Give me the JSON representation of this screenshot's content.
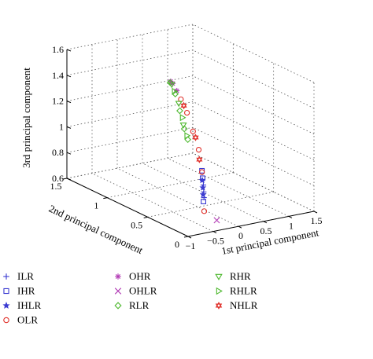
{
  "chart_data": {
    "type": "scatter",
    "projection": "3d",
    "title": "",
    "xlabel": "1st principal component",
    "ylabel": "2nd principal component",
    "zlabel": "3rd principal component",
    "xlim": [
      -1,
      1.5
    ],
    "ylim": [
      0,
      1.5
    ],
    "zlim": [
      0.6,
      1.6
    ],
    "xticks": [
      "−1",
      "−0.5",
      "0",
      "0.5",
      "1",
      "1.5"
    ],
    "yticks": [
      "0",
      "0.5",
      "1",
      "1.5"
    ],
    "zticks": [
      "0.6",
      "0.8",
      "1",
      "1.2",
      "1.4",
      "1.6"
    ],
    "grid": true,
    "legend_position": "bottom",
    "series": [
      {
        "name": "ILR",
        "marker": "plus",
        "color": "#3b3bd1",
        "points": [
          [
            -0.62,
            0.04,
            0.86
          ],
          [
            -0.61,
            0.05,
            0.9
          ],
          [
            -0.6,
            0.06,
            0.95
          ]
        ]
      },
      {
        "name": "IHR",
        "marker": "square",
        "color": "#3b3bd1",
        "points": [
          [
            -0.63,
            0.04,
            0.83
          ],
          [
            -0.6,
            0.07,
            1.0
          ],
          [
            -0.58,
            0.09,
            1.05
          ]
        ]
      },
      {
        "name": "IHLR",
        "marker": "star",
        "color": "#3b3bd1",
        "points": [
          [
            -0.62,
            0.05,
            0.88
          ],
          [
            -0.61,
            0.06,
            0.93
          ],
          [
            -0.59,
            0.08,
            0.98
          ]
        ]
      },
      {
        "name": "OLR",
        "marker": "circle",
        "color": "#e0302a",
        "points": [
          [
            -0.6,
            0.05,
            0.75
          ],
          [
            -0.58,
            0.09,
            1.04
          ],
          [
            -0.5,
            0.18,
            1.18
          ],
          [
            -0.42,
            0.3,
            1.28
          ],
          [
            -0.3,
            0.45,
            1.37
          ],
          [
            -0.18,
            0.6,
            1.42
          ]
        ]
      },
      {
        "name": "OHR",
        "marker": "asterisk",
        "color": "#b23cb5",
        "points": [
          [
            -0.1,
            0.7,
            1.45
          ],
          [
            -0.02,
            0.8,
            1.47
          ],
          [
            0.05,
            0.87,
            1.46
          ]
        ]
      },
      {
        "name": "OHLR",
        "marker": "x",
        "color": "#b23cb5",
        "points": [
          [
            -0.35,
            0.05,
            0.66
          ]
        ]
      },
      {
        "name": "RLR",
        "marker": "diamond",
        "color": "#4db82e",
        "points": [
          [
            0.12,
            0.92,
            1.43
          ],
          [
            0.35,
            1.0,
            1.3
          ],
          [
            0.6,
            1.1,
            1.12
          ],
          [
            0.85,
            1.2,
            0.93
          ],
          [
            1.0,
            1.25,
            0.82
          ]
        ]
      },
      {
        "name": "RHR",
        "marker": "triangle-down",
        "color": "#4db82e",
        "points": [
          [
            0.2,
            0.95,
            1.4
          ],
          [
            0.5,
            1.05,
            1.2
          ],
          [
            0.8,
            1.18,
            0.97
          ]
        ]
      },
      {
        "name": "RHLR",
        "marker": "triangle-right",
        "color": "#4db82e",
        "points": [
          [
            0.3,
            0.98,
            1.33
          ],
          [
            0.7,
            1.13,
            1.05
          ],
          [
            0.95,
            1.23,
            0.86
          ]
        ]
      },
      {
        "name": "NHLR",
        "marker": "hexagram",
        "color": "#e0302a",
        "points": [
          [
            -0.55,
            0.14,
            1.12
          ],
          [
            -0.45,
            0.25,
            1.25
          ],
          [
            -0.25,
            0.52,
            1.4
          ]
        ]
      }
    ]
  }
}
